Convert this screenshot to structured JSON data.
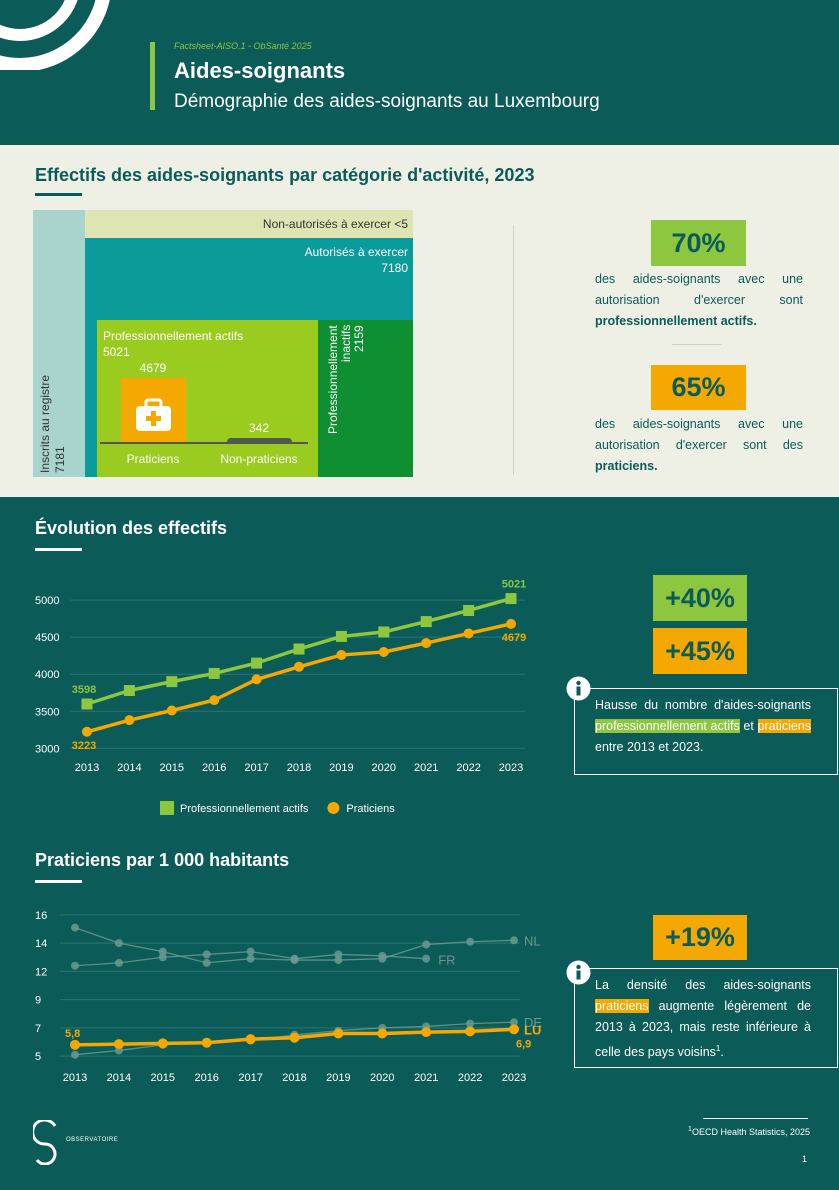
{
  "header": {
    "code": "Factsheet-AISO.1 - ObSanté 2025",
    "title": "Aides-soignants",
    "subtitle": "Démographie des aides-soignants au Luxembourg"
  },
  "effectifs": {
    "title": "Effectifs des aides-soignants par catégorie d'activité, 2023",
    "registre": {
      "label": "Inscrits au registre",
      "value": 7181
    },
    "non_autorises": {
      "label": "Non-autorisés à exercer <5"
    },
    "autorises": {
      "label": "Autorisés à exercer",
      "value": 7180
    },
    "actifs": {
      "label": "Professionnellement actifs",
      "value": 5021
    },
    "inactifs": {
      "label": "Professionnellement inactifs",
      "value": 2159
    },
    "praticiens": {
      "label": "Praticiens",
      "value": 4679
    },
    "non_praticiens": {
      "label": "Non-praticiens",
      "value": 342
    },
    "stats": [
      {
        "value": "70%",
        "text": [
          "des aides-soignants avec une autorisation d'exercer sont ",
          "professionnellement actifs",
          "."
        ]
      },
      {
        "value": "65%",
        "text": [
          "des aides-soignants avec une autorisation d'exercer sont des ",
          "praticiens",
          "."
        ]
      }
    ]
  },
  "chart_data": [
    {
      "type": "line",
      "title": "Évolution des effectifs",
      "categories": [
        "2013",
        "2014",
        "2015",
        "2016",
        "2017",
        "2018",
        "2019",
        "2020",
        "2021",
        "2022",
        "2023"
      ],
      "series": [
        {
          "name": "Professionnellement actifs",
          "color": "#8dc63f",
          "marker": "square",
          "values": [
            3598,
            3780,
            3900,
            4010,
            4150,
            4340,
            4510,
            4570,
            4710,
            4860,
            5021
          ]
        },
        {
          "name": "Praticiens",
          "color": "#f5a800",
          "marker": "circle",
          "values": [
            3223,
            3380,
            3510,
            3650,
            3930,
            4100,
            4260,
            4300,
            4420,
            4550,
            4679
          ]
        }
      ],
      "ylim": [
        2950,
        5150
      ],
      "yticks": [
        3000,
        3500,
        4000,
        4500,
        5000
      ],
      "grid": true,
      "legend": "bottom"
    },
    {
      "type": "line",
      "title": "Praticiens par 1 000 habitants",
      "categories": [
        "2013",
        "2014",
        "2015",
        "2016",
        "2017",
        "2018",
        "2019",
        "2020",
        "2021",
        "2022",
        "2023"
      ],
      "series": [
        {
          "name": "NL",
          "color": "#6a9a90",
          "values": [
            15.1,
            14.0,
            13.4,
            12.6,
            12.9,
            12.8,
            12.8,
            12.9,
            13.9,
            14.1,
            14.2
          ]
        },
        {
          "name": "FR",
          "color": "#6a9a90",
          "values": [
            12.4,
            12.6,
            13.0,
            13.2,
            13.4,
            12.9,
            13.2,
            13.1,
            12.9,
            null,
            null
          ]
        },
        {
          "name": "DE",
          "color": "#6a9a90",
          "values": [
            5.1,
            5.4,
            5.8,
            6.0,
            6.1,
            6.5,
            6.8,
            7.0,
            7.1,
            7.3,
            7.4
          ]
        },
        {
          "name": "LU",
          "color": "#f5a800",
          "values": [
            5.8,
            5.85,
            5.9,
            5.95,
            6.2,
            6.3,
            6.6,
            6.6,
            6.7,
            6.75,
            6.9
          ],
          "value_labels": [
            "5,8",
            null,
            null,
            null,
            null,
            null,
            null,
            null,
            null,
            null,
            "6,9"
          ]
        }
      ],
      "ylim": [
        4.3,
        16.7
      ],
      "yticks": [
        5,
        7,
        9,
        12,
        14,
        16
      ],
      "grid": true
    }
  ],
  "evolution_notes": {
    "stats": [
      "+40%",
      "+45%"
    ],
    "info": [
      "Hausse du nombre d'aides-soignants ",
      "professionnellement actifs",
      " et ",
      "praticiens",
      " entre 2013 et 2023."
    ]
  },
  "densite_notes": {
    "stat": "+19%",
    "info": [
      "La densité des aides-soignants ",
      "praticiens",
      " augmente légèrement de 2013 à 2023, mais reste inférieure à celle des pays voisins",
      "1",
      "."
    ]
  },
  "footer": {
    "logo": "OBSERVATOIRE",
    "footnote_mark": "1",
    "footnote": "OECD Health Statistics, 2025",
    "page": "1"
  }
}
